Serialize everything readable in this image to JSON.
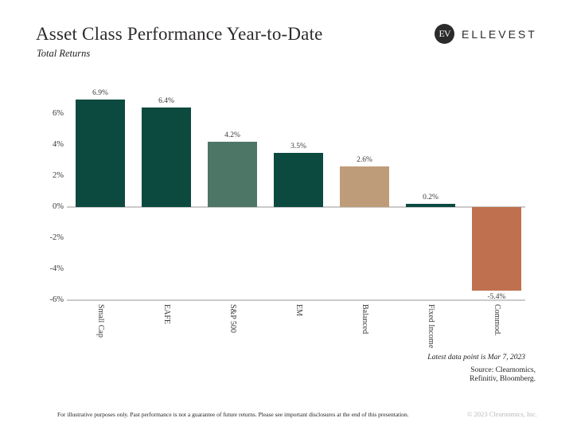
{
  "header": {
    "title": "Asset Class Performance Year-to-Date",
    "subtitle": "Total Returns",
    "logo": {
      "monogram": "EV",
      "brand": "ELLEVEST"
    }
  },
  "chart_data": {
    "type": "bar",
    "title": "Asset Class Performance Year-to-Date",
    "subtitle": "Total Returns",
    "categories": [
      "Small Cap",
      "EAFE",
      "S&P 500",
      "EM",
      "Balanced",
      "Fixed Income",
      "Commod."
    ],
    "values": [
      6.9,
      6.4,
      4.2,
      3.5,
      2.6,
      0.2,
      -5.4
    ],
    "value_labels": [
      "6.9%",
      "6.4%",
      "4.2%",
      "3.5%",
      "2.6%",
      "0.2%",
      "-5.4%"
    ],
    "bar_colors": [
      "#0c4a40",
      "#0c4a40",
      "#4d7667",
      "#0c4a40",
      "#bf9c79",
      "#0c4a40",
      "#bf704f"
    ],
    "yticks": [
      6,
      4,
      2,
      0,
      -2,
      -4,
      -6
    ],
    "ytick_labels": [
      "6%",
      "4%",
      "2%",
      "0%",
      "-2%",
      "-4%",
      "-6%"
    ],
    "ylim": [
      -6,
      7.6
    ],
    "gridlines_at": [
      0,
      -6
    ],
    "grid": "off",
    "legend": "none",
    "xlabel": "",
    "ylabel": ""
  },
  "annotations": {
    "latest": "Latest data point is Mar 7, 2023",
    "source_line1": "Source: Clearnomics,",
    "source_line2": "Refinitiv, Bloomberg."
  },
  "footer": {
    "disclaimer": "For illustrative purposes only. Past performance is not a guarantee of future returns. Please see important disclosures at the end of this presentation.",
    "copyright": "© 2023 Clearnomics, Inc."
  },
  "colors": {
    "dark_teal": "#0c4a40",
    "sage_green": "#4d7667",
    "tan": "#bf9c79",
    "terracotta": "#bf704f",
    "axis_line": "#cbcbcb",
    "text": "#2d2a2b",
    "copyright_gray": "#b9b9b9",
    "logo_background": "#2b2b2b"
  }
}
